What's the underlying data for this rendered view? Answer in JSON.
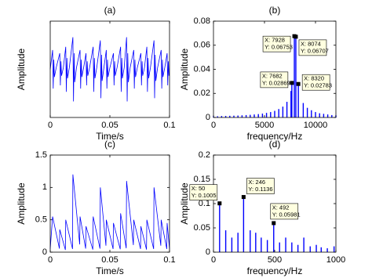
{
  "chart_data": [
    {
      "type": "line",
      "title": "(a)",
      "xlabel": "Time/s",
      "ylabel": "Amplitude",
      "color": "#0000ff",
      "xlim": [
        0,
        0.1
      ],
      "ylim": [
        -1.5,
        1.5
      ],
      "xticks": [
        0,
        0.05,
        0.1
      ],
      "yticks": [],
      "x": [
        0,
        0.002,
        0.0025,
        0.003,
        0.0035,
        0.005,
        0.008,
        0.0085,
        0.009,
        0.0095,
        0.011,
        0.013,
        0.0135,
        0.014,
        0.0145,
        0.016,
        0.019,
        0.0195,
        0.02,
        0.0205,
        0.022,
        0.025,
        0.0255,
        0.026,
        0.0265,
        0.028,
        0.03,
        0.0305,
        0.031,
        0.0315,
        0.033,
        0.036,
        0.0365,
        0.037,
        0.0375,
        0.039,
        0.042,
        0.0425,
        0.043,
        0.0435,
        0.045,
        0.047,
        0.0475,
        0.048,
        0.0485,
        0.05,
        0.053,
        0.0535,
        0.054,
        0.0545,
        0.056,
        0.059,
        0.0595,
        0.06,
        0.0605,
        0.062,
        0.064,
        0.0645,
        0.065,
        0.0655,
        0.067,
        0.07,
        0.0705,
        0.071,
        0.0715,
        0.073,
        0.076,
        0.0765,
        0.077,
        0.0775,
        0.079,
        0.081,
        0.0815,
        0.082,
        0.0825,
        0.084,
        0.087,
        0.0875,
        0.088,
        0.0885,
        0.09,
        0.093,
        0.0935,
        0.094,
        0.0945,
        0.096,
        0.098,
        0.0985,
        0.099,
        0.0995
      ],
      "values": [
        0,
        0.6,
        -0.6,
        0.3,
        -0.24,
        0.05,
        0.5,
        -0.5,
        0.25,
        -0.2,
        0.05,
        0.7,
        -0.7,
        0.35,
        -0.28,
        0.05,
        1,
        -1,
        0.5,
        -0.4,
        0.05,
        0.6,
        -0.6,
        0.3,
        -0.24,
        0.05,
        0.5,
        -0.5,
        0.25,
        -0.2,
        0.05,
        0.7,
        -0.7,
        0.35,
        -0.28,
        0.05,
        0.9,
        -0.9,
        0.45,
        -0.36,
        0.05,
        0.6,
        -0.6,
        0.3,
        -0.24,
        0.05,
        0.5,
        -0.5,
        0.25,
        -0.2,
        0.05,
        0.7,
        -0.7,
        0.35,
        -0.28,
        0.05,
        1,
        -1,
        0.5,
        -0.4,
        0.05,
        0.6,
        -0.6,
        0.3,
        -0.24,
        0.05,
        0.5,
        -0.5,
        0.25,
        -0.2,
        0.05,
        0.7,
        -0.7,
        0.35,
        -0.28,
        0.05,
        0.9,
        -0.9,
        0.45,
        -0.36,
        0.05,
        0.6,
        -0.6,
        0.3,
        -0.24,
        0.05,
        0.5,
        -0.5,
        0.25,
        -0.2
      ]
    },
    {
      "type": "stem",
      "title": "(b)",
      "xlabel": "frequency/Hz",
      "ylabel": "Amplitude",
      "color": "#0000ff",
      "xlim": [
        0,
        12000
      ],
      "ylim": [
        0,
        0.08
      ],
      "xticks": [
        0,
        5000,
        10000
      ],
      "yticks": [
        0,
        0.02,
        0.04,
        0.06,
        0.08
      ],
      "x": [
        0,
        400,
        800,
        1200,
        1600,
        2000,
        2400,
        2800,
        3200,
        3600,
        4000,
        4400,
        4800,
        5200,
        5600,
        6000,
        6400,
        6800,
        7200,
        7600,
        7682,
        7928,
        8074,
        8320,
        8800,
        9200,
        9600,
        10000,
        10400,
        10800,
        11200,
        11600,
        12000
      ],
      "values": [
        0.001,
        0.001,
        0.0012,
        0.0013,
        0.0014,
        0.0015,
        0.0016,
        0.0018,
        0.002,
        0.0022,
        0.0025,
        0.0028,
        0.0032,
        0.0038,
        0.0045,
        0.0055,
        0.007,
        0.009,
        0.013,
        0.022,
        0.02869,
        0.06753,
        0.06707,
        0.02783,
        0.012,
        0.008,
        0.006,
        0.0045,
        0.0035,
        0.003,
        0.0025,
        0.002,
        0.0018
      ],
      "annotations": [
        {
          "x": 7928,
          "y": 0.06753,
          "label_x": "X: 7928",
          "label_y": "Y: 0.06753"
        },
        {
          "x": 8074,
          "y": 0.06707,
          "label_x": "X: 8074",
          "label_y": "Y: 0.06707"
        },
        {
          "x": 7682,
          "y": 0.02869,
          "label_x": "X: 7682",
          "label_y": "Y: 0.02869"
        },
        {
          "x": 8320,
          "y": 0.02783,
          "label_x": "X: 8320",
          "label_y": "Y: 0.02783"
        }
      ]
    },
    {
      "type": "line",
      "title": "(c)",
      "xlabel": "Time/s",
      "ylabel": "Amplitude",
      "color": "#0000ff",
      "xlim": [
        0,
        0.1
      ],
      "ylim": [
        0,
        1.5
      ],
      "xticks": [
        0,
        0.05,
        0.1
      ],
      "yticks": [
        0,
        0.5,
        1,
        1.5
      ],
      "x": [
        0,
        0.002,
        0.0077,
        0.008,
        0.0127,
        0.013,
        0.0187,
        0.019,
        0.0247,
        0.025,
        0.0297,
        0.03,
        0.0357,
        0.036,
        0.0417,
        0.042,
        0.0467,
        0.047,
        0.0527,
        0.053,
        0.0587,
        0.059,
        0.0637,
        0.064,
        0.0697,
        0.07,
        0.0757,
        0.076,
        0.0807,
        0.081,
        0.0867,
        0.087,
        0.0927,
        0.093,
        0.0977,
        0.098,
        0.1
      ],
      "values": [
        0.05,
        0.55,
        0.055,
        0.35,
        0.035,
        0.5,
        0.05,
        1.2,
        0.12,
        0.55,
        0.055,
        0.4,
        0.04,
        0.55,
        0.055,
        1.0,
        0.1,
        0.5,
        0.05,
        0.45,
        0.045,
        0.6,
        0.06,
        1.1,
        0.11,
        0.5,
        0.05,
        0.4,
        0.04,
        0.5,
        0.05,
        1.0,
        0.1,
        0.5,
        0.05,
        0.45,
        0.045
      ]
    },
    {
      "type": "stem",
      "title": "(d)",
      "xlabel": "frequency/Hz",
      "ylabel": "Amplitude",
      "color": "#0000ff",
      "xlim": [
        0,
        1000
      ],
      "ylim": [
        0,
        0.2
      ],
      "xticks": [
        0,
        500,
        1000
      ],
      "yticks": [
        0,
        0.05,
        0.1,
        0.15,
        0.2
      ],
      "x": [
        50,
        100,
        150,
        200,
        246,
        300,
        345,
        390,
        440,
        492,
        540,
        590,
        640,
        690,
        738,
        790,
        840,
        880,
        930,
        985
      ],
      "values": [
        0.1005,
        0.045,
        0.03,
        0.04,
        0.1136,
        0.045,
        0.04,
        0.03,
        0.025,
        0.05981,
        0.02,
        0.03,
        0.02,
        0.015,
        0.03,
        0.012,
        0.015,
        0.01,
        0.008,
        0.012
      ],
      "annotations": [
        {
          "x": 50,
          "y": 0.1005,
          "label_x": "X: 50",
          "label_y": "Y: 0.1005"
        },
        {
          "x": 246,
          "y": 0.1136,
          "label_x": "X: 246",
          "label_y": "Y: 0.1136"
        },
        {
          "x": 492,
          "y": 0.05981,
          "label_x": "X: 492",
          "label_y": "Y: 0.05981"
        }
      ]
    }
  ]
}
